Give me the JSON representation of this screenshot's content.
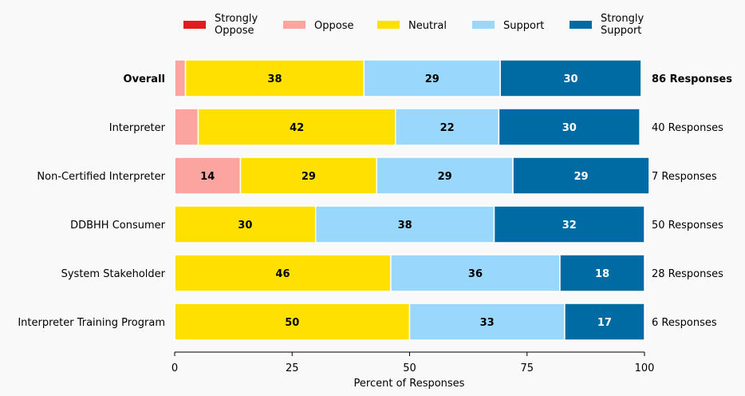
{
  "chart_data": {
    "type": "bar",
    "orientation": "horizontal",
    "stacked": true,
    "xlabel": "Percent of Responses",
    "xlim": [
      0,
      100
    ],
    "xticks": [
      0,
      25,
      50,
      75,
      100
    ],
    "legend_position": "top",
    "categories": [
      "Overall",
      "Interpreter",
      "Non-Certified Interpreter",
      "DDBHH Consumer",
      "System Stakeholder",
      "Interpreter Training Program"
    ],
    "responses": [
      "86 Responses",
      "40 Responses",
      "7 Responses",
      "50 Responses",
      "28 Responses",
      "6 Responses"
    ],
    "series": [
      {
        "name": "Strongly\nOppose",
        "color": "#e31a1c",
        "text_color": "#000000",
        "values": [
          0,
          0,
          0,
          0,
          0,
          0
        ]
      },
      {
        "name": "Oppose",
        "color": "#fca4a0",
        "text_color": "#000000",
        "values": [
          2.3,
          5,
          14,
          0,
          0,
          0
        ]
      },
      {
        "name": "Neutral",
        "color": "#ffe000",
        "text_color": "#000000",
        "values": [
          38,
          42,
          29,
          30,
          46,
          50
        ]
      },
      {
        "name": "Support",
        "color": "#99d8fc",
        "text_color": "#000000",
        "values": [
          29,
          22,
          29,
          38,
          36,
          33
        ]
      },
      {
        "name": "Strongly\nSupport",
        "color": "#006aa3",
        "text_color": "#ffffff",
        "values": [
          30,
          30,
          29,
          32,
          18,
          17
        ]
      }
    ],
    "segment_labels": [
      [
        "",
        "",
        "38",
        "29",
        "30"
      ],
      [
        "",
        "",
        "42",
        "22",
        "30"
      ],
      [
        "",
        "14",
        "29",
        "29",
        "29"
      ],
      [
        "",
        "",
        "30",
        "38",
        "32"
      ],
      [
        "",
        "",
        "46",
        "36",
        "18"
      ],
      [
        "",
        "",
        "50",
        "33",
        "17"
      ]
    ],
    "bold_rows": [
      0
    ]
  }
}
